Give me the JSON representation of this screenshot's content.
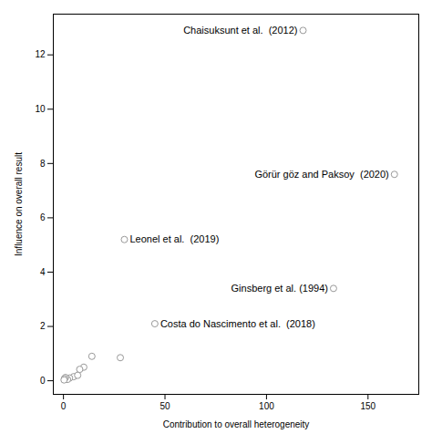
{
  "chart_data": {
    "type": "scatter",
    "xlabel": "Contribution to overall heterogeneity",
    "ylabel": "Influence on overall result",
    "xlim": [
      -5,
      175
    ],
    "ylim": [
      -0.5,
      13.5
    ],
    "xticks": [
      0,
      50,
      100,
      150
    ],
    "yticks": [
      0,
      2,
      4,
      6,
      8,
      10,
      12
    ],
    "x": [
      118,
      163,
      133,
      45,
      30,
      28,
      14,
      10,
      8,
      5,
      3,
      2,
      1,
      0.5,
      0.3,
      7
    ],
    "values": [
      12.9,
      7.6,
      3.4,
      2.1,
      5.2,
      0.85,
      0.9,
      0.5,
      0.42,
      0.15,
      0.1,
      0.05,
      0.12,
      0.08,
      0.03,
      0.2
    ],
    "labels": [
      "Chaisuksunt et al.  (2012)",
      "Görür göz and Paksoy  (2020)",
      "Ginsberg et al. (1994)",
      "Costa do Nascimento et al.  (2018)",
      "Leonel et al.  (2019)",
      null,
      null,
      null,
      null,
      null,
      null,
      null,
      null,
      null,
      null,
      null
    ],
    "color": "#999999",
    "marker": "o",
    "grid": false
  }
}
